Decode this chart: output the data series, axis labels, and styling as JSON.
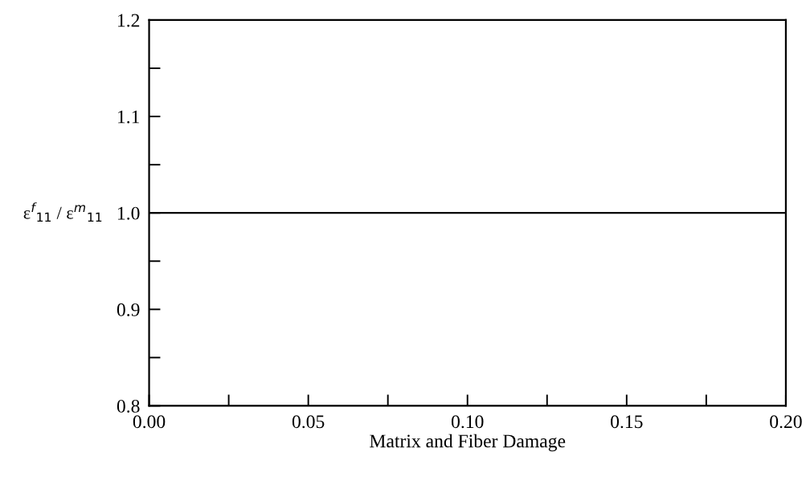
{
  "chart_data": {
    "type": "line",
    "xlabel": "Matrix and Fiber Damage",
    "ylabel": "ε$^{f}$$_{11}$ / ε$^{m}$$_{11}$",
    "series": [
      {
        "x": [
          0,
          0.2
        ],
        "values": [
          1.0,
          1.0
        ],
        "color": "#000000"
      }
    ],
    "xlim": [
      0,
      0.2
    ],
    "ylim": [
      0.8,
      1.2
    ],
    "xticks": [
      {
        "value": 0,
        "label": "0.00"
      },
      {
        "value": 0.025,
        "label": null
      },
      {
        "value": 0.05,
        "label": "0.05"
      },
      {
        "value": 0.075,
        "label": null
      },
      {
        "value": 0.1,
        "label": "0.10"
      },
      {
        "value": 0.125,
        "label": null
      },
      {
        "value": 0.15,
        "label": "0.15"
      },
      {
        "value": 0.175,
        "label": null
      },
      {
        "value": 0.2,
        "label": "0.20"
      }
    ],
    "yticks": [
      0.8,
      {
        "value": 0.85,
        "label": null
      },
      0.9,
      {
        "value": 0.95,
        "label": null
      },
      {
        "value": 1.0,
        "label": "1.0"
      },
      {
        "value": 1.05,
        "label": null
      },
      1.1,
      {
        "value": 1.15,
        "label": null
      },
      1.2
    ],
    "grid": false,
    "marker": "none",
    "line_style": "solid"
  }
}
